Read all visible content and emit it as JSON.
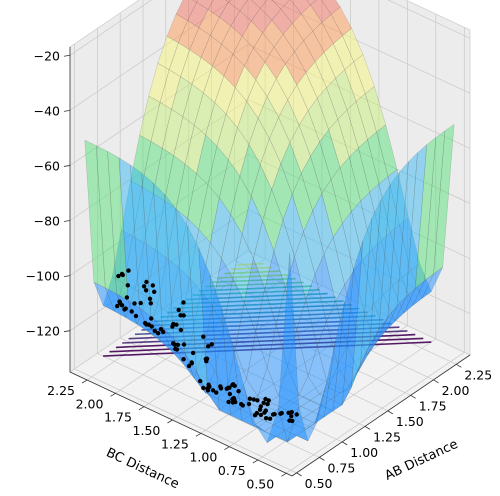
{
  "chart_data": {
    "type": "surface3d",
    "title": "",
    "xlabel": "BC Distance",
    "ylabel": "AB Distance",
    "zlabel": "",
    "x_ticks": [
      "0.50",
      "0.75",
      "1.00",
      "1.25",
      "1.50",
      "1.75",
      "2.00",
      "2.25"
    ],
    "y_ticks": [
      "0.50",
      "0.75",
      "1.00",
      "1.25",
      "1.50",
      "1.75",
      "2.00",
      "2.25"
    ],
    "z_ticks": [
      "−20",
      "−40",
      "−60",
      "−80",
      "−100",
      "−120"
    ],
    "xlim": [
      0.45,
      2.4
    ],
    "ylim": [
      0.45,
      2.4
    ],
    "zlim": [
      -135,
      -17
    ],
    "grid": true,
    "elements": [
      "potential energy surface with filled color bands (blue, cyan, green, yellow, orange, red)",
      "contour lines projected onto the base plane (viridis colors)",
      "black scatter trajectory points along the reaction path"
    ],
    "colors": {
      "band_blue": "#1E90FF",
      "band_green": "#55E07A",
      "band_yellow": "#F5F57A",
      "band_orange": "#FF9A55",
      "band_red": "#F27060",
      "contour_low": "#440154",
      "contour_high": "#FDE725",
      "points": "#000000"
    }
  }
}
